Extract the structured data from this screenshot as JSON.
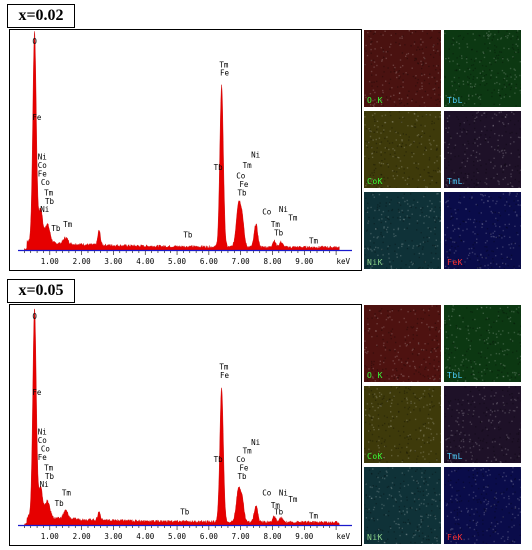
{
  "chart_data": [
    {
      "type": "area",
      "panel_label": "x=0.02",
      "xlabel": "keV",
      "xlim": [
        0,
        10.5
      ],
      "ylim": [
        0,
        100
      ],
      "x_ticks": [
        "1.00",
        "2.00",
        "3.00",
        "4.00",
        "5.00",
        "6.00",
        "7.00",
        "8.00",
        "9.00"
      ],
      "peaks": [
        {
          "x": 0.52,
          "h": 100,
          "w": 0.055
        },
        {
          "x": 0.71,
          "h": 16,
          "w": 0.06
        },
        {
          "x": 0.92,
          "h": 9,
          "w": 0.08
        },
        {
          "x": 1.5,
          "h": 3,
          "w": 0.07
        },
        {
          "x": 2.55,
          "h": 7,
          "w": 0.04
        },
        {
          "x": 6.4,
          "h": 77,
          "w": 0.055
        },
        {
          "x": 6.93,
          "h": 20,
          "w": 0.07
        },
        {
          "x": 7.05,
          "h": 12,
          "w": 0.06
        },
        {
          "x": 7.48,
          "h": 11,
          "w": 0.055
        },
        {
          "x": 8.05,
          "h": 3,
          "w": 0.05
        },
        {
          "x": 8.27,
          "h": 2.5,
          "w": 0.05
        }
      ],
      "labels": [
        {
          "text": "O",
          "x": 0.45,
          "y": 98
        },
        {
          "text": "Fe",
          "x": 0.45,
          "y": 62
        },
        {
          "text": "Ni",
          "x": 0.62,
          "y": 43
        },
        {
          "text": "Co",
          "x": 0.62,
          "y": 39
        },
        {
          "text": "Fe",
          "x": 0.62,
          "y": 35
        },
        {
          "text": "Co",
          "x": 0.72,
          "y": 31
        },
        {
          "text": "Tm",
          "x": 0.82,
          "y": 26
        },
        {
          "text": "Tb",
          "x": 0.85,
          "y": 22
        },
        {
          "text": "Ni",
          "x": 0.7,
          "y": 18
        },
        {
          "text": "Tb",
          "x": 1.05,
          "y": 9
        },
        {
          "text": "Tm",
          "x": 1.42,
          "y": 11
        },
        {
          "text": "Tb",
          "x": 5.2,
          "y": 6
        },
        {
          "text": "Tm",
          "x": 6.33,
          "y": 87
        },
        {
          "text": "Fe",
          "x": 6.35,
          "y": 83
        },
        {
          "text": "Tb",
          "x": 6.15,
          "y": 38
        },
        {
          "text": "Ni",
          "x": 7.33,
          "y": 44
        },
        {
          "text": "Tm",
          "x": 7.06,
          "y": 39
        },
        {
          "text": "Co",
          "x": 6.86,
          "y": 34
        },
        {
          "text": "Fe",
          "x": 6.96,
          "y": 30
        },
        {
          "text": "Tb",
          "x": 6.9,
          "y": 26
        },
        {
          "text": "Co",
          "x": 7.68,
          "y": 17
        },
        {
          "text": "Ni",
          "x": 8.2,
          "y": 18
        },
        {
          "text": "Tm",
          "x": 8.5,
          "y": 14
        },
        {
          "text": "Tm",
          "x": 7.95,
          "y": 11
        },
        {
          "text": "Tb",
          "x": 8.05,
          "y": 7
        },
        {
          "text": "Tm",
          "x": 9.15,
          "y": 3
        }
      ]
    },
    {
      "type": "area",
      "panel_label": "x=0.05",
      "xlabel": "keV",
      "xlim": [
        0,
        10.5
      ],
      "ylim": [
        0,
        100
      ],
      "x_ticks": [
        "1.00",
        "2.00",
        "3.00",
        "4.00",
        "5.00",
        "6.00",
        "7.00",
        "8.00",
        "9.00"
      ],
      "peaks": [
        {
          "x": 0.52,
          "h": 100,
          "w": 0.055
        },
        {
          "x": 0.71,
          "h": 14,
          "w": 0.06
        },
        {
          "x": 0.92,
          "h": 8,
          "w": 0.08
        },
        {
          "x": 1.5,
          "h": 4,
          "w": 0.07
        },
        {
          "x": 2.55,
          "h": 4,
          "w": 0.04
        },
        {
          "x": 6.4,
          "h": 64,
          "w": 0.055
        },
        {
          "x": 6.93,
          "h": 15,
          "w": 0.07
        },
        {
          "x": 7.05,
          "h": 9,
          "w": 0.06
        },
        {
          "x": 7.48,
          "h": 8,
          "w": 0.055
        },
        {
          "x": 8.05,
          "h": 2.5,
          "w": 0.05
        },
        {
          "x": 8.27,
          "h": 2,
          "w": 0.05
        }
      ],
      "labels": [
        {
          "text": "O",
          "x": 0.45,
          "y": 98
        },
        {
          "text": "Fe",
          "x": 0.45,
          "y": 62
        },
        {
          "text": "Ni",
          "x": 0.62,
          "y": 43
        },
        {
          "text": "Co",
          "x": 0.62,
          "y": 39
        },
        {
          "text": "Co",
          "x": 0.72,
          "y": 35
        },
        {
          "text": "Fe",
          "x": 0.62,
          "y": 31
        },
        {
          "text": "Tm",
          "x": 0.82,
          "y": 26
        },
        {
          "text": "Tb",
          "x": 0.85,
          "y": 22
        },
        {
          "text": "Ni",
          "x": 0.68,
          "y": 18
        },
        {
          "text": "Tm",
          "x": 1.38,
          "y": 14
        },
        {
          "text": "Tb",
          "x": 1.15,
          "y": 9
        },
        {
          "text": "Tb",
          "x": 5.1,
          "y": 5
        },
        {
          "text": "Tm",
          "x": 6.33,
          "y": 74
        },
        {
          "text": "Fe",
          "x": 6.35,
          "y": 70
        },
        {
          "text": "Tb",
          "x": 6.15,
          "y": 30
        },
        {
          "text": "Ni",
          "x": 7.33,
          "y": 38
        },
        {
          "text": "Tm",
          "x": 7.06,
          "y": 34
        },
        {
          "text": "Co",
          "x": 6.86,
          "y": 30
        },
        {
          "text": "Fe",
          "x": 6.96,
          "y": 26
        },
        {
          "text": "Tb",
          "x": 6.9,
          "y": 22
        },
        {
          "text": "Co",
          "x": 7.68,
          "y": 14
        },
        {
          "text": "Ni",
          "x": 8.2,
          "y": 14
        },
        {
          "text": "Tm",
          "x": 8.5,
          "y": 11
        },
        {
          "text": "Tm",
          "x": 7.95,
          "y": 8
        },
        {
          "text": "Tb",
          "x": 8.05,
          "y": 5
        },
        {
          "text": "Tm",
          "x": 9.15,
          "y": 3
        }
      ]
    }
  ],
  "maps": [
    [
      {
        "label": "O  K",
        "bg": "#4a1210",
        "color": "#39ff39"
      },
      {
        "label": "TbL",
        "bg": "#0c3812",
        "color": "#4fd2ff"
      },
      {
        "label": "CoK",
        "bg": "#3e3a0a",
        "color": "#39ff39"
      },
      {
        "label": "TmL",
        "bg": "#1e1128",
        "color": "#4fd2ff"
      },
      {
        "label": "NiK",
        "bg": "#0f3238",
        "color": "#8ad28a"
      },
      {
        "label": "FeK",
        "bg": "#0a0c4a",
        "color": "#ff3333"
      }
    ],
    [
      {
        "label": "O  K",
        "bg": "#4e1210",
        "color": "#39ff39"
      },
      {
        "label": "TbL",
        "bg": "#0c3812",
        "color": "#4fd2ff"
      },
      {
        "label": "CoK",
        "bg": "#3e3a0a",
        "color": "#39ff39"
      },
      {
        "label": "TmL",
        "bg": "#1e1128",
        "color": "#4fd2ff"
      },
      {
        "label": "NiK",
        "bg": "#0f3238",
        "color": "#8ad28a"
      },
      {
        "label": "FeK",
        "bg": "#0a0c4a",
        "color": "#ff3333"
      }
    ]
  ],
  "colors": {
    "spectrum_fill": "#e60000",
    "baseline": "#1a1acc"
  }
}
